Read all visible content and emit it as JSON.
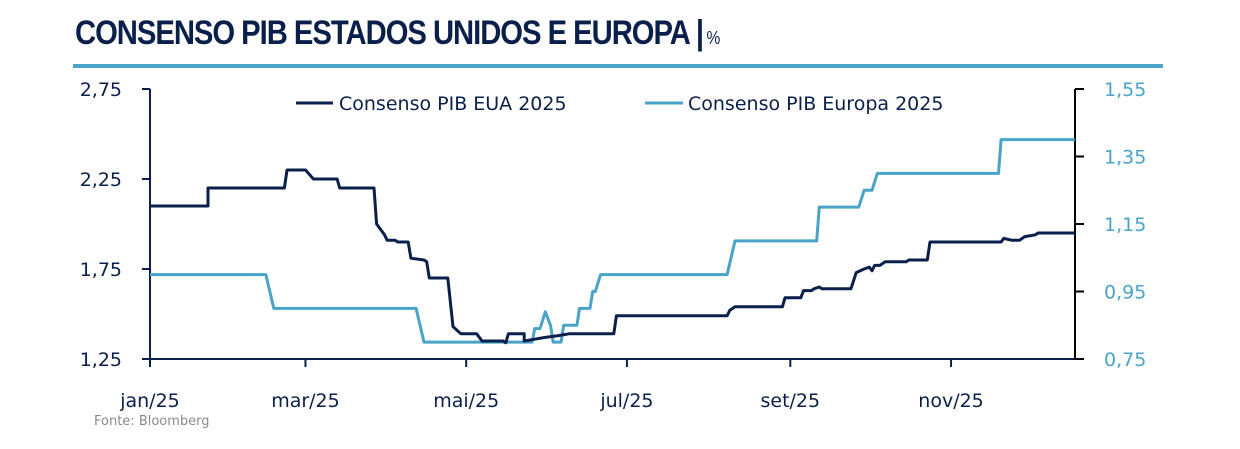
{
  "header": {
    "title": "CONSENSO PIB ESTADOS UNIDOS E EUROPA |",
    "unit": "%"
  },
  "source": "Fonte: Bloomberg",
  "colors": {
    "eua": "#0b1f4b",
    "europa": "#4aa3c8",
    "rule": "#4aa3c8"
  },
  "chart_data": {
    "type": "line",
    "title": "CONSENSO PIB ESTADOS UNIDOS E EUROPA | %",
    "xlabel": "",
    "x_unit": "day of 2025 (0 = 1 jan)",
    "x_range": [
      0,
      351
    ],
    "x_ticks": [
      {
        "day": 0,
        "label": "jan/25"
      },
      {
        "day": 59,
        "label": "mar/25"
      },
      {
        "day": 120,
        "label": "mai/25"
      },
      {
        "day": 181,
        "label": "jul/25"
      },
      {
        "day": 243,
        "label": "set/25"
      },
      {
        "day": 304,
        "label": "nov/25"
      }
    ],
    "y_left": {
      "range": [
        1.25,
        2.75
      ],
      "ticks": [
        "1,25",
        "1,75",
        "2,25",
        "2,75"
      ],
      "tick_values": [
        1.25,
        1.75,
        2.25,
        2.75
      ]
    },
    "y_right": {
      "range": [
        0.75,
        1.55
      ],
      "ticks": [
        "0,75",
        "0,95",
        "1,15",
        "1,35",
        "1,55"
      ],
      "tick_values": [
        0.75,
        0.95,
        1.15,
        1.35,
        1.55
      ]
    },
    "legend_position": "top-center",
    "grid": false,
    "series": [
      {
        "name": "Consenso PIB EUA 2025",
        "axis": "left",
        "points": [
          [
            0,
            2.1
          ],
          [
            22,
            2.1
          ],
          [
            22,
            2.2
          ],
          [
            51,
            2.2
          ],
          [
            52,
            2.3
          ],
          [
            59,
            2.3
          ],
          [
            62,
            2.25
          ],
          [
            71,
            2.25
          ],
          [
            72,
            2.2
          ],
          [
            85,
            2.2
          ],
          [
            86,
            2.0
          ],
          [
            89,
            1.94
          ],
          [
            90,
            1.91
          ],
          [
            93,
            1.91
          ],
          [
            94,
            1.9
          ],
          [
            98,
            1.9
          ],
          [
            99,
            1.81
          ],
          [
            104,
            1.8
          ],
          [
            105,
            1.79
          ],
          [
            106,
            1.7
          ],
          [
            113,
            1.7
          ],
          [
            115,
            1.43
          ],
          [
            118,
            1.39
          ],
          [
            124,
            1.39
          ],
          [
            126,
            1.35
          ],
          [
            134,
            1.35
          ],
          [
            135,
            1.34
          ],
          [
            136,
            1.39
          ],
          [
            142,
            1.39
          ],
          [
            142,
            1.35
          ],
          [
            146,
            1.36
          ],
          [
            150,
            1.37
          ],
          [
            155,
            1.38
          ],
          [
            159,
            1.39
          ],
          [
            176,
            1.39
          ],
          [
            177,
            1.49
          ],
          [
            219,
            1.49
          ],
          [
            220,
            1.52
          ],
          [
            222,
            1.54
          ],
          [
            224,
            1.54
          ],
          [
            225,
            1.54
          ],
          [
            240,
            1.54
          ],
          [
            241,
            1.59
          ],
          [
            247,
            1.59
          ],
          [
            248,
            1.63
          ],
          [
            251,
            1.63
          ],
          [
            252,
            1.64
          ],
          [
            254,
            1.65
          ],
          [
            255,
            1.64
          ],
          [
            266,
            1.64
          ],
          [
            268,
            1.73
          ],
          [
            271,
            1.75
          ],
          [
            273,
            1.76
          ],
          [
            274,
            1.74
          ],
          [
            275,
            1.77
          ],
          [
            277,
            1.77
          ],
          [
            279,
            1.79
          ],
          [
            287,
            1.79
          ],
          [
            288,
            1.8
          ],
          [
            295,
            1.8
          ],
          [
            296,
            1.9
          ],
          [
            323,
            1.9
          ],
          [
            324,
            1.92
          ],
          [
            327,
            1.91
          ],
          [
            330,
            1.91
          ],
          [
            332,
            1.93
          ],
          [
            336,
            1.94
          ],
          [
            337,
            1.95
          ],
          [
            351,
            1.95
          ]
        ]
      },
      {
        "name": "Consenso PIB Europa 2025",
        "axis": "right",
        "points": [
          [
            0,
            1.0
          ],
          [
            44,
            1.0
          ],
          [
            47,
            0.9
          ],
          [
            101,
            0.9
          ],
          [
            104,
            0.8
          ],
          [
            145,
            0.8
          ],
          [
            146,
            0.84
          ],
          [
            148,
            0.84
          ],
          [
            150,
            0.89
          ],
          [
            152,
            0.85
          ],
          [
            153,
            0.8
          ],
          [
            156,
            0.8
          ],
          [
            157,
            0.85
          ],
          [
            162,
            0.85
          ],
          [
            163,
            0.9
          ],
          [
            167,
            0.9
          ],
          [
            168,
            0.95
          ],
          [
            169,
            0.95
          ],
          [
            171,
            1.0
          ],
          [
            219,
            1.0
          ],
          [
            222,
            1.1
          ],
          [
            253,
            1.1
          ],
          [
            254,
            1.2
          ],
          [
            269,
            1.2
          ],
          [
            271,
            1.25
          ],
          [
            274,
            1.25
          ],
          [
            276,
            1.3
          ],
          [
            322,
            1.3
          ],
          [
            323,
            1.4
          ],
          [
            351,
            1.4
          ]
        ]
      }
    ]
  }
}
